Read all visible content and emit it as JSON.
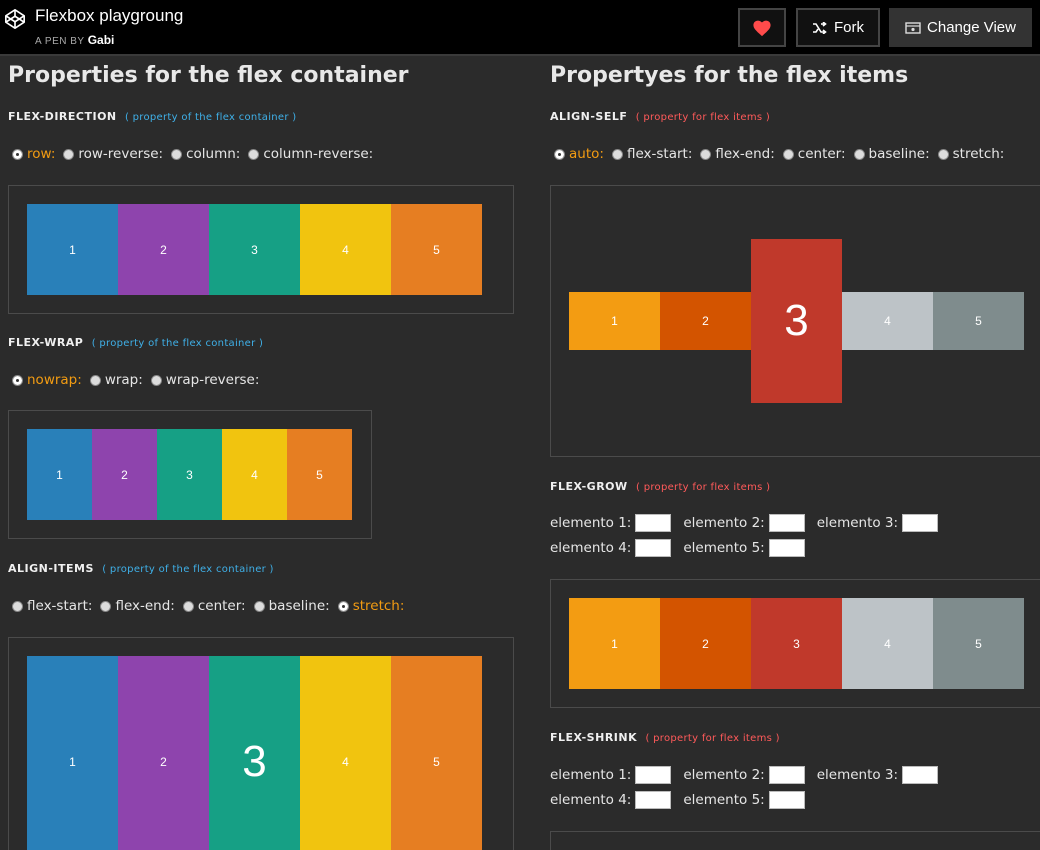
{
  "header": {
    "title": "Flexbox playgroung",
    "byline_prefix": "A PEN BY",
    "author": "Gabi",
    "fork_label": "Fork",
    "view_label": "Change View",
    "heart_color": "#ff4b4b"
  },
  "left": {
    "heading": "Properties for the flex container",
    "note": "( property of the flex container )",
    "flex_direction": {
      "title": "FLEX-DIRECTION",
      "options": [
        "row:",
        "row-reverse:",
        "column:",
        "column-reverse:"
      ],
      "selected": "row:",
      "items": [
        "1",
        "2",
        "3",
        "4",
        "5"
      ]
    },
    "flex_wrap": {
      "title": "FLEX-WRAP",
      "options": [
        "nowrap:",
        "wrap:",
        "wrap-reverse:"
      ],
      "selected": "nowrap:",
      "items": [
        "1",
        "2",
        "3",
        "4",
        "5"
      ]
    },
    "align_items": {
      "title": "ALIGN-ITEMS",
      "options": [
        "flex-start:",
        "flex-end:",
        "center:",
        "baseline:",
        "stretch:"
      ],
      "selected": "stretch:",
      "items": [
        "1",
        "2",
        "3",
        "4",
        "5"
      ]
    }
  },
  "right": {
    "heading": "Propertyes for the flex items",
    "note": "( property for flex items )",
    "align_self": {
      "title": "ALIGN-SELF",
      "options": [
        "auto:",
        "flex-start:",
        "flex-end:",
        "center:",
        "baseline:",
        "stretch:"
      ],
      "selected": "auto:",
      "items": [
        "1",
        "2",
        "3",
        "4",
        "5"
      ]
    },
    "flex_grow": {
      "title": "FLEX-GROW",
      "labels": [
        "elemento 1:",
        "elemento 2:",
        "elemento 3:",
        "elemento 4:",
        "elemento 5:"
      ],
      "values": [
        "",
        "",
        "",
        "",
        ""
      ],
      "items": [
        "1",
        "2",
        "3",
        "4",
        "5"
      ]
    },
    "flex_shrink": {
      "title": "FLEX-SHRINK",
      "labels": [
        "elemento 1:",
        "elemento 2:",
        "elemento 3:",
        "elemento 4:",
        "elemento 5:"
      ],
      "values": [
        "",
        "",
        "",
        "",
        ""
      ]
    }
  },
  "colors": {
    "blue": "#2980b9",
    "purple": "#8e44ad",
    "teal": "#16a085",
    "yellow": "#f1c40f",
    "orange": "#e67e22",
    "gold": "#f39c12",
    "pumpkin": "#d35400",
    "red": "#c0392b",
    "silver": "#bdc3c7",
    "gray": "#7f8c8d",
    "accent": "#f39c12"
  }
}
